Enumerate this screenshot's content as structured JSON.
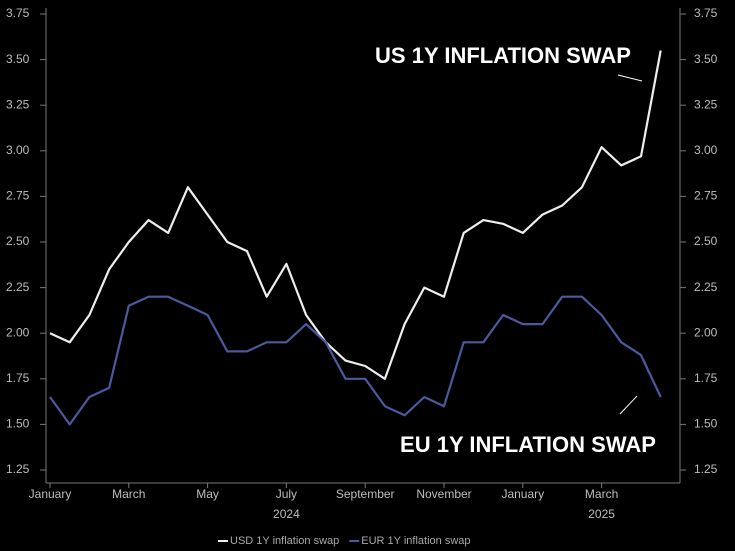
{
  "chart_data": {
    "type": "line",
    "categories": [
      "January",
      null,
      null,
      null,
      "March",
      null,
      null,
      null,
      "May",
      null,
      null,
      null,
      "July",
      null,
      null,
      null,
      "September",
      null,
      null,
      null,
      "November",
      null,
      null,
      null,
      "January",
      null,
      null,
      null,
      "March",
      null,
      null,
      null
    ],
    "category_years": [
      null,
      null,
      null,
      null,
      null,
      null,
      null,
      null,
      null,
      null,
      null,
      null,
      "2024",
      null,
      null,
      null,
      null,
      null,
      null,
      null,
      null,
      null,
      null,
      null,
      null,
      null,
      null,
      null,
      "2025",
      null,
      null,
      null
    ],
    "series": [
      {
        "name": "USD 1Y inflation swap",
        "color": "#eeeeee",
        "values": [
          2.0,
          1.95,
          2.1,
          2.35,
          2.5,
          2.62,
          2.55,
          2.8,
          2.65,
          2.5,
          2.45,
          2.2,
          2.38,
          2.1,
          1.95,
          1.85,
          1.82,
          1.75,
          2.05,
          2.25,
          2.2,
          2.55,
          2.62,
          2.6,
          2.55,
          2.65,
          2.7,
          2.8,
          3.02,
          2.92,
          2.97,
          3.55
        ]
      },
      {
        "name": "EUR 1Y inflation swap",
        "color": "#4a5a9c",
        "values": [
          1.65,
          1.5,
          1.65,
          1.7,
          2.15,
          2.2,
          2.2,
          2.15,
          2.1,
          1.9,
          1.9,
          1.95,
          1.95,
          2.05,
          1.95,
          1.75,
          1.75,
          1.6,
          1.55,
          1.65,
          1.6,
          1.95,
          1.95,
          2.1,
          2.05,
          2.05,
          2.2,
          2.2,
          2.1,
          1.95,
          1.88,
          1.65
        ]
      }
    ],
    "ylim": [
      1.25,
      3.75
    ],
    "yticks": [
      1.25,
      {
        "value": 1.5,
        "label": "1.50"
      },
      1.75,
      {
        "value": 2,
        "label": "2.00"
      },
      2.25,
      {
        "value": 2.5,
        "label": "2.50"
      },
      2.75,
      {
        "value": 3,
        "label": "3.00"
      },
      3.25,
      {
        "value": 3.5,
        "label": "3.50"
      },
      3.75
    ],
    "y2lim": [
      1.25,
      3.75
    ],
    "y2ticks": [
      1.25,
      {
        "value": 1.5,
        "label": "1.50"
      },
      1.75,
      {
        "value": 2,
        "label": "2.00"
      },
      2.25,
      {
        "value": 2.5,
        "label": "2.50"
      },
      2.75,
      {
        "value": 3,
        "label": "3.00"
      },
      3.25,
      {
        "value": 3.5,
        "label": "3.50"
      },
      3.75
    ],
    "annotations": [
      "US 1Y INFLATION SWAP",
      "EU 1Y INFLATION SWAP"
    ],
    "legend": "bottom"
  }
}
